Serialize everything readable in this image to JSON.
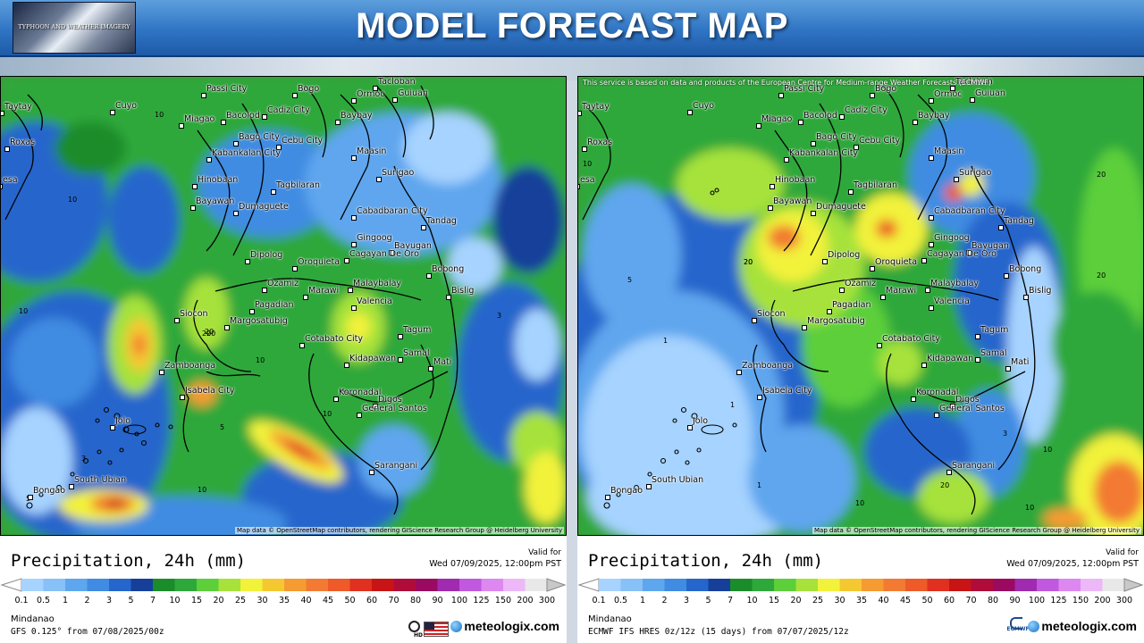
{
  "header": {
    "title": "MODEL FORECAST MAP",
    "logo_text": "TYPHOON AND WEATHER IMAGERY"
  },
  "colors": {
    "header_top": "#5d9fdc",
    "header_bottom": "#1e5aa6"
  },
  "left": {
    "legend_title": "Precipitation, 24h (mm)",
    "valid_label": "Valid for",
    "valid_date": "Wed 07/09/2025, 12:00pm PST",
    "region": "Mindanao",
    "model": "GFS 0.125° from  07/08/2025/00z",
    "brand": "meteologix.com",
    "attribution": "Map data © OpenStreetMap contributors, rendering GIScience Research Group @ Heidelberg University",
    "contour_labels": [
      "10",
      "10",
      "20",
      "10",
      "20",
      "10",
      "20",
      "3",
      "10",
      "5",
      "3",
      "5",
      "10"
    ]
  },
  "right": {
    "legend_title": "Precipitation, 24h (mm)",
    "valid_label": "Valid for",
    "valid_date": "Wed 07/09/2025, 12:00pm PST",
    "region": "Mindanao",
    "model": "ECMWF IFS HRES 0z/12z (15 days) from  07/07/2025/12z",
    "brand": "meteologix.com",
    "ecmwf": "ECMWF",
    "notice": "This service is based on data and products of the European Centre for Medium-range Weather Forecasts (ECMWF)",
    "attribution": "Map data © OpenStreetMap contributors, rendering GIScience Research Group @ Heidelberg University",
    "contour_labels": [
      "10",
      "20",
      "20",
      "10",
      "20",
      "5",
      "1",
      "1",
      "1",
      "10",
      "20",
      "10",
      "20",
      "10",
      "3"
    ]
  },
  "scale": {
    "ticks": [
      "0.1",
      "0.5",
      "1",
      "2",
      "3",
      "5",
      "7",
      "10",
      "15",
      "20",
      "25",
      "30",
      "35",
      "40",
      "45",
      "50",
      "60",
      "70",
      "80",
      "90",
      "100",
      "125",
      "150",
      "200",
      "300"
    ],
    "colors": [
      "#a6d3ff",
      "#88c0f8",
      "#5ea6ee",
      "#3f8ce2",
      "#2566cc",
      "#163f9a",
      "#1a8c2a",
      "#2ea83a",
      "#5ccf3a",
      "#a6e23a",
      "#f2f23a",
      "#f5c832",
      "#f59b32",
      "#f27a32",
      "#ee5a28",
      "#e03020",
      "#c81414",
      "#b00c3a",
      "#9a0a60",
      "#a02ab0",
      "#c058e0",
      "#dd88f0",
      "#ecb8f8",
      "#e8e8e8",
      "#c8c8c8"
    ]
  },
  "cities": [
    {
      "name": "Taytay"
    },
    {
      "name": "Roxas"
    },
    {
      "name": "Cuyo"
    },
    {
      "name": "esa"
    },
    {
      "name": "Passi City"
    },
    {
      "name": "Bogo"
    },
    {
      "name": "Ormoc"
    },
    {
      "name": "Tacloban"
    },
    {
      "name": "Guiuan"
    },
    {
      "name": "Miagao"
    },
    {
      "name": "Bacolod"
    },
    {
      "name": "Cadiz City"
    },
    {
      "name": "Baybay"
    },
    {
      "name": "Bago City"
    },
    {
      "name": "Cebu City"
    },
    {
      "name": "Kabankalan City"
    },
    {
      "name": "Maasin"
    },
    {
      "name": "Surigao"
    },
    {
      "name": "Hinobaan"
    },
    {
      "name": "Tagbilaran"
    },
    {
      "name": "Bayawan"
    },
    {
      "name": "Dumaguete"
    },
    {
      "name": "Cabadbaran City"
    },
    {
      "name": "Tandag"
    },
    {
      "name": "Gingoog"
    },
    {
      "name": "Bayugan"
    },
    {
      "name": "Dipolog"
    },
    {
      "name": "Oroquieta"
    },
    {
      "name": "Cagayan De Oro"
    },
    {
      "name": "Bobong"
    },
    {
      "name": "Ozamiz"
    },
    {
      "name": "Marawi"
    },
    {
      "name": "Malaybalay"
    },
    {
      "name": "Bislig"
    },
    {
      "name": "Siocon"
    },
    {
      "name": "Pagadian"
    },
    {
      "name": "Margosatubig"
    },
    {
      "name": "Valencia"
    },
    {
      "name": "Tagum"
    },
    {
      "name": "Cotabato City"
    },
    {
      "name": "Zamboanga"
    },
    {
      "name": "Kidapawan"
    },
    {
      "name": "Samal"
    },
    {
      "name": "Mati"
    },
    {
      "name": "Isabela City"
    },
    {
      "name": "Digos"
    },
    {
      "name": "Koronadal"
    },
    {
      "name": "General Santos"
    },
    {
      "name": "Jolo"
    },
    {
      "name": "Sarangani"
    },
    {
      "name": "South Ubian"
    },
    {
      "name": "Bongao"
    }
  ]
}
